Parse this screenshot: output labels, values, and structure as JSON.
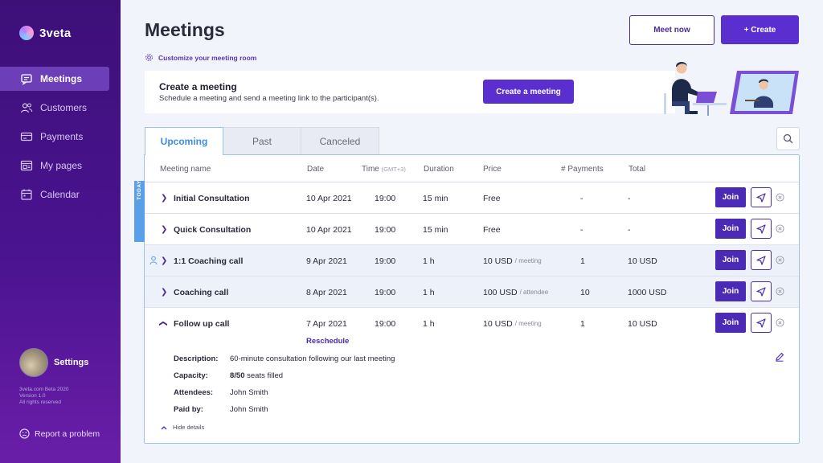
{
  "app": {
    "name": "3veta"
  },
  "sidebar": {
    "items": [
      {
        "label": "Meetings",
        "icon": "meetings-icon",
        "active": true
      },
      {
        "label": "Customers",
        "icon": "customers-icon",
        "active": false
      },
      {
        "label": "Payments",
        "icon": "payments-icon",
        "active": false
      },
      {
        "label": "My pages",
        "icon": "pages-icon",
        "active": false
      },
      {
        "label": "Calendar",
        "icon": "calendar-icon",
        "active": false
      }
    ],
    "settings_label": "Settings",
    "version_lines": [
      "3veta.com Beta 2020",
      "Version 1.0",
      "All rights reserved"
    ],
    "report_label": "Report a problem"
  },
  "header": {
    "title": "Meetings",
    "customize_label": "Customize your meeting room",
    "meet_now_label": "Meet now",
    "create_label": "+ Create"
  },
  "create_card": {
    "title": "Create a meeting",
    "subtitle": "Schedule a meeting and send a meeting link to the participant(s).",
    "button_label": "Create a meeting"
  },
  "tabs": [
    {
      "label": "Upcoming",
      "active": true
    },
    {
      "label": "Past",
      "active": false
    },
    {
      "label": "Canceled",
      "active": false
    }
  ],
  "table": {
    "headers": {
      "name": "Meeting name",
      "date": "Date",
      "time": "Time",
      "time_zone": "(GMT+3)",
      "duration": "Duration",
      "price": "Price",
      "payments": "# Payments",
      "total": "Total"
    },
    "today_label": "TODAY",
    "join_label": "Join",
    "rows": [
      {
        "name": "Initial Consultation",
        "date": "10 Apr 2021",
        "time": "19:00",
        "duration": "15 min",
        "price": "Free",
        "price_unit": "",
        "payments": "-",
        "total": "-"
      },
      {
        "name": "Quick Consultation",
        "date": "10 Apr 2021",
        "time": "19:00",
        "duration": "15 min",
        "price": "Free",
        "price_unit": "",
        "payments": "-",
        "total": "-"
      },
      {
        "name": "1:1 Coaching call",
        "date": "9 Apr 2021",
        "time": "19:00",
        "duration": "1 h",
        "price": "10 USD",
        "price_unit": "/ meeting",
        "payments": "1",
        "total": "10  USD"
      },
      {
        "name": "Coaching call",
        "date": "8 Apr 2021",
        "time": "19:00",
        "duration": "1 h",
        "price": "100 USD",
        "price_unit": "/ attendee",
        "payments": "10",
        "total": "1000  USD"
      },
      {
        "name": "Follow up call",
        "date": "7 Apr 2021",
        "time": "19:00",
        "duration": "1 h",
        "price": "10 USD",
        "price_unit": "/ meeting",
        "payments": "1",
        "total": "10  USD"
      }
    ],
    "expanded": {
      "reschedule_label": "Reschedule",
      "description_label": "Description:",
      "description": "60-minute consultation following our last meeting",
      "capacity_label": "Capacity:",
      "capacity_count": "8/50",
      "capacity_suffix": "seats filled",
      "attendees_label": "Attendees:",
      "attendees": "John Smith",
      "paid_by_label": "Paid by:",
      "paid_by": "John Smith",
      "hide_details_label": "Hide details"
    }
  },
  "colors": {
    "sidebar_top": "#3d1078",
    "sidebar_bottom": "#6a1ea8",
    "primary": "#5b2fcf",
    "tab_active": "#3b8de0",
    "today_strip": "#5aa0e8"
  }
}
